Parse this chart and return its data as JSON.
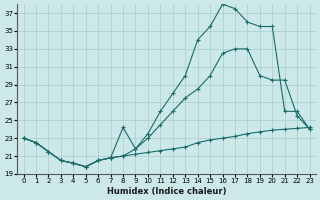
{
  "xlabel": "Humidex (Indice chaleur)",
  "bg_color": "#cce8e8",
  "grid_color": "#aacccc",
  "line_color": "#1a6b6b",
  "xlim": [
    -0.5,
    23.5
  ],
  "ylim": [
    19,
    38
  ],
  "yticks": [
    19,
    21,
    23,
    25,
    27,
    29,
    31,
    33,
    35,
    37
  ],
  "xticks": [
    0,
    1,
    2,
    3,
    4,
    5,
    6,
    7,
    8,
    9,
    10,
    11,
    12,
    13,
    14,
    15,
    16,
    17,
    18,
    19,
    20,
    21,
    22,
    23
  ],
  "line1_x": [
    0,
    1,
    2,
    3,
    4,
    5,
    6,
    7,
    8,
    9,
    10,
    11,
    12,
    13,
    14,
    15,
    16,
    17,
    18,
    19,
    20,
    21,
    22,
    23
  ],
  "line1_y": [
    23,
    22.5,
    21.5,
    20.5,
    20.2,
    19.8,
    20.5,
    20.8,
    21.0,
    21.2,
    21.4,
    21.6,
    21.8,
    22.0,
    22.5,
    22.8,
    23.0,
    23.2,
    23.5,
    23.7,
    23.9,
    24.0,
    24.1,
    24.2
  ],
  "line2_x": [
    0,
    1,
    2,
    3,
    4,
    5,
    6,
    7,
    8,
    9,
    10,
    11,
    12,
    13,
    14,
    15,
    16,
    17,
    18,
    19,
    20,
    21,
    22,
    23
  ],
  "line2_y": [
    23,
    22.5,
    21.5,
    20.5,
    20.2,
    19.8,
    20.5,
    20.8,
    24.2,
    21.8,
    23.0,
    24.5,
    26.0,
    27.5,
    28.5,
    30.0,
    32.5,
    33.0,
    33.0,
    30.0,
    29.5,
    29.5,
    25.5,
    24.0
  ],
  "line3_x": [
    0,
    1,
    2,
    3,
    4,
    5,
    6,
    7,
    8,
    9,
    10,
    11,
    12,
    13,
    14,
    15,
    16,
    17,
    18,
    19,
    20,
    21,
    22,
    23
  ],
  "line3_y": [
    23,
    22.5,
    21.5,
    20.5,
    20.2,
    19.8,
    20.5,
    20.8,
    21.0,
    21.8,
    23.5,
    26.0,
    28.0,
    30.0,
    34.0,
    35.5,
    38.0,
    37.5,
    36.0,
    35.5,
    35.5,
    26.0,
    26.0,
    24.0
  ]
}
